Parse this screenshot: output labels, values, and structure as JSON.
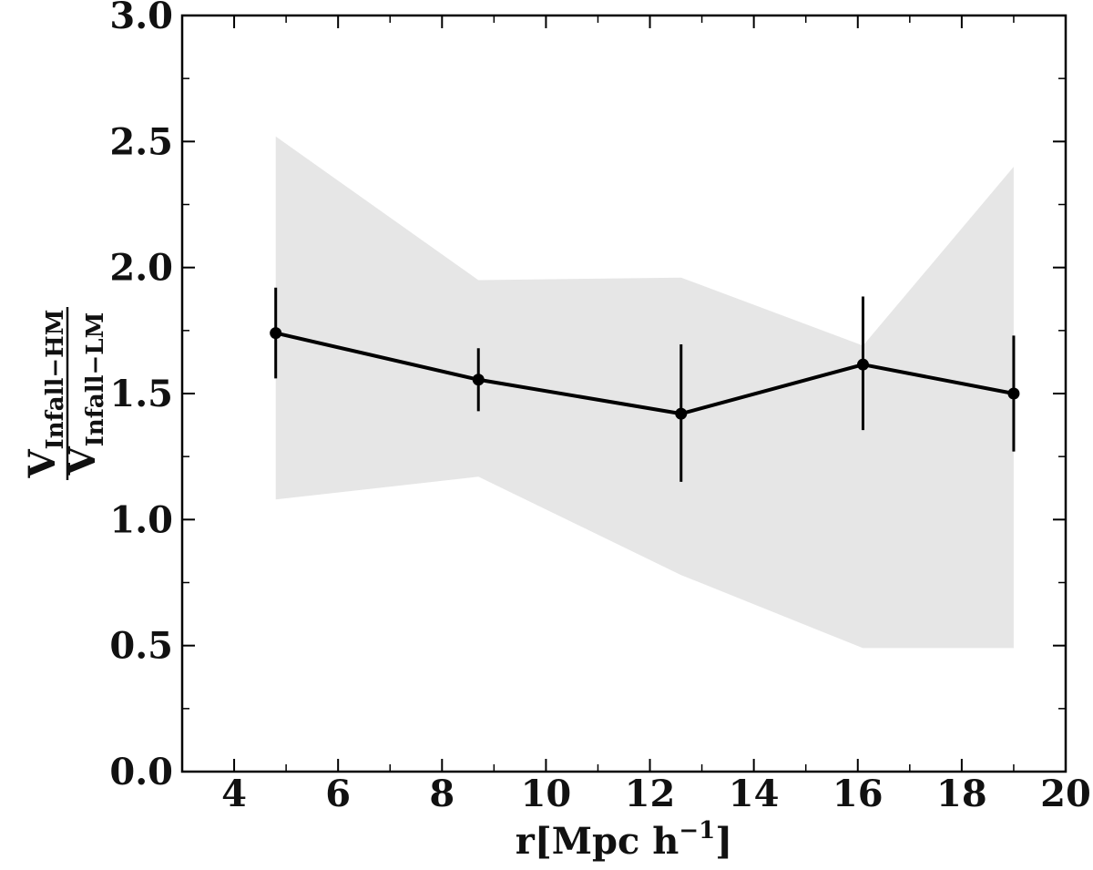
{
  "chart_data": {
    "type": "line",
    "title": "",
    "xlabel": "r[Mpc h",
    "xlabel_sup": "−1",
    "xlabel_close": "]",
    "ylabel": {
      "numerator": "V",
      "numerator_sub": "Infall−HM",
      "denominator": "V",
      "denominator_sub": "Infall−LM"
    },
    "xlim": [
      3,
      20
    ],
    "ylim": [
      0,
      3
    ],
    "xticks": [
      4,
      6,
      8,
      10,
      12,
      14,
      16,
      18,
      20
    ],
    "xtick_labels": [
      "4",
      "6",
      "8",
      "10",
      "12",
      "14",
      "16",
      "18",
      "20"
    ],
    "yticks": [
      0,
      0.5,
      1,
      1.5,
      2,
      2.5,
      3
    ],
    "ytick_labels": [
      "0.0",
      "0.5",
      "1.0",
      "1.5",
      "2.0",
      "2.5",
      "3.0"
    ],
    "grid": false,
    "series": [
      {
        "x": [
          4.8,
          8.7,
          12.6,
          16.1,
          19.0
        ],
        "y": [
          1.74,
          1.555,
          1.42,
          1.615,
          1.5
        ],
        "err_low": [
          1.56,
          1.43,
          1.15,
          1.355,
          1.27
        ],
        "err_high": [
          1.92,
          1.68,
          1.695,
          1.885,
          1.73
        ],
        "color": "#000000"
      }
    ],
    "band": {
      "x": [
        4.8,
        8.7,
        12.6,
        16.1,
        19.0
      ],
      "lower": [
        1.08,
        1.17,
        0.78,
        0.49,
        0.49
      ],
      "upper": [
        2.52,
        1.95,
        1.96,
        1.69,
        2.4
      ],
      "color": "#e6e6e6"
    }
  }
}
